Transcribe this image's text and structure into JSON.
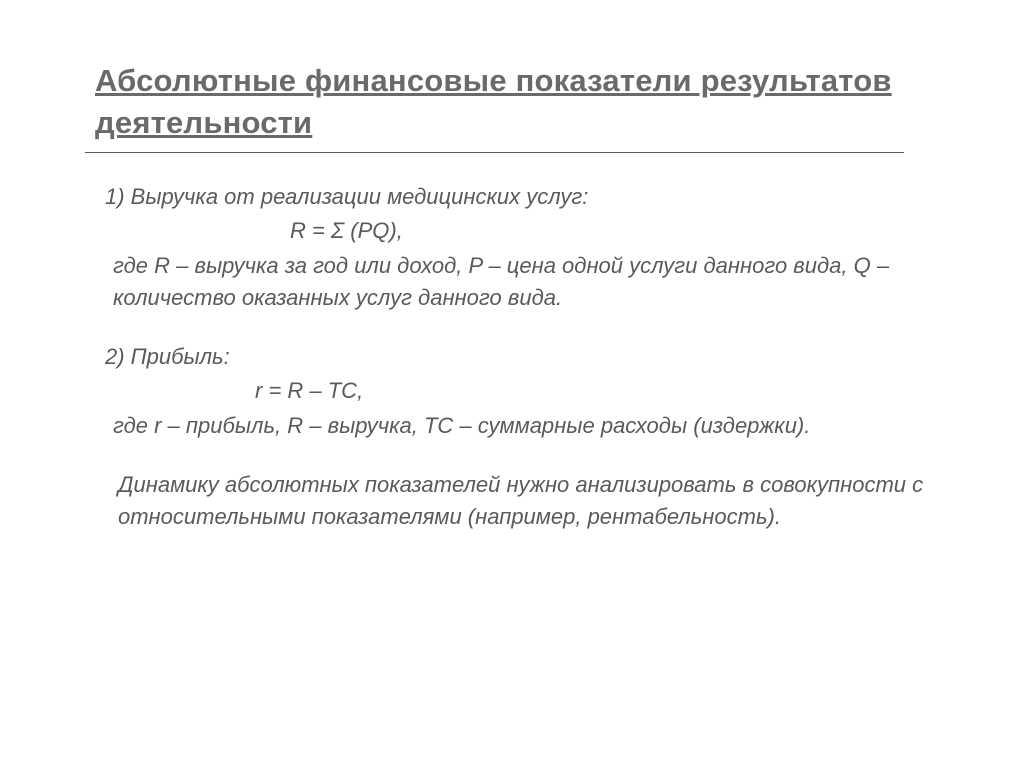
{
  "slide": {
    "title": "Абсолютные финансовые показатели результатов деятельности",
    "items": [
      {
        "heading": "1) Выручка от реализации медицинских услуг:",
        "formula": "R = Σ (PQ),",
        "explanation": "где R – выручка за год или доход, P – цена одной услуги данного вида, Q – количество оказанных услуг данного вида."
      },
      {
        "heading": "2) Прибыль:",
        "formula": "r = R – TC,",
        "explanation": "где r – прибыль, R – выручка, TC – суммарные расходы (издержки)."
      }
    ],
    "closing": "Динамику абсолютных показателей нужно анализировать в совокупности с относительными показателями (например, рентабельность)."
  },
  "style": {
    "background_color": "#ffffff",
    "title_color": "#6a6a6a",
    "text_color": "#5a5a5a",
    "divider_color": "#5a5a5a",
    "font_family": "Verdana",
    "title_fontsize": 31,
    "body_fontsize": 22,
    "body_font_style": "italic"
  }
}
